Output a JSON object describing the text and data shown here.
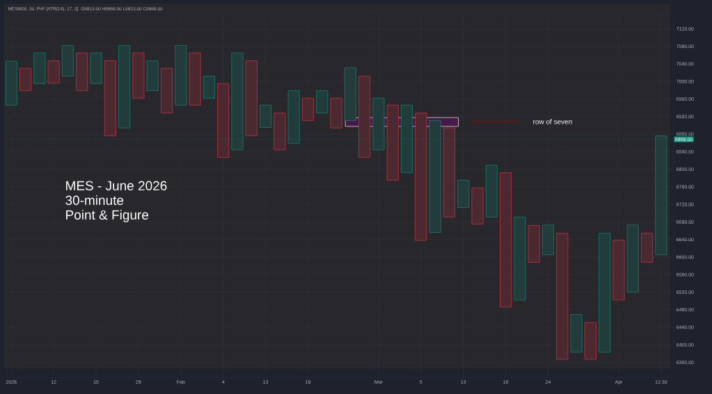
{
  "chart_data": {
    "type": "bar",
    "title": "MESM26, 30, PnF [ATR(14), 17, 3]",
    "subtitle": "O6813.00 H6868.00 L6813.00 C6868.00",
    "categories": [
      "2026",
      null,
      null,
      "12",
      null,
      null,
      "15",
      null,
      null,
      "29",
      null,
      null,
      "Feb",
      null,
      null,
      "4",
      null,
      null,
      "13",
      null,
      null,
      "19",
      null,
      null,
      null,
      null,
      "Mar",
      null,
      null,
      "5",
      null,
      null,
      "13",
      null,
      null,
      "18",
      null,
      null,
      "24",
      null,
      null,
      null,
      null,
      "Apr",
      null,
      null,
      "12:30"
    ],
    "series": [
      {
        "color": "#12806e",
        "values": [
          100,
          null,
          70,
          null,
          70,
          null,
          70,
          null,
          188,
          null,
          68,
          null,
          136,
          null,
          50,
          null,
          221,
          null,
          51,
          null,
          120,
          null,
          51,
          null,
          120,
          null,
          118,
          null,
          154,
          null,
          255,
          null,
          62,
          null,
          118,
          null,
          189,
          null,
          68,
          null,
          86,
          null,
          271,
          null,
          153,
          null,
          271
        ],
        "base": [
          6946,
          null,
          6995,
          null,
          7012,
          null,
          6995,
          null,
          6894,
          null,
          6979,
          null,
          6946,
          null,
          6962,
          null,
          6844,
          null,
          6895,
          null,
          6859,
          null,
          6928,
          null,
          6911,
          null,
          6844,
          null,
          6792,
          null,
          6656,
          null,
          6713,
          null,
          6691,
          null,
          6502,
          null,
          6605,
          null,
          6383,
          null,
          6383,
          null,
          6520,
          null,
          6605
        ]
      },
      {
        "color": "#c9303e",
        "values": [
          null,
          51,
          null,
          51,
          null,
          86,
          null,
          171,
          null,
          103,
          null,
          102,
          null,
          119,
          null,
          168,
          null,
          171,
          null,
          84,
          null,
          51,
          null,
          68,
          null,
          185,
          null,
          171,
          null,
          290,
          null,
          203,
          null,
          82,
          null,
          306,
          null,
          84,
          null,
          287,
          null,
          84,
          null,
          136,
          null,
          66,
          null
        ],
        "base": [
          null,
          6979,
          null,
          6996,
          null,
          6979,
          null,
          6876,
          null,
          6962,
          null,
          6928,
          null,
          6946,
          null,
          6827,
          null,
          6876,
          null,
          6844,
          null,
          6911,
          null,
          6894,
          null,
          6827,
          null,
          6775,
          null,
          6638,
          null,
          6691,
          null,
          6675,
          null,
          6486,
          null,
          6588,
          null,
          6367,
          null,
          6367,
          null,
          6502,
          null,
          6588,
          null
        ]
      }
    ],
    "ylim": [
      6325,
      7156
    ],
    "yticks": [
      {
        "value": 6360,
        "label": "6360.00"
      },
      {
        "value": 6400,
        "label": "6400.00"
      },
      {
        "value": 6440,
        "label": "6440.00"
      },
      {
        "value": 6480,
        "label": "6480.00"
      },
      {
        "value": 6520,
        "label": "6520.00"
      },
      {
        "value": 6560,
        "label": "6560.00"
      },
      {
        "value": 6600,
        "label": "6600.00"
      },
      {
        "value": 6640,
        "label": "6640.00"
      },
      {
        "value": 6680,
        "label": "6680.00"
      },
      {
        "value": 6720,
        "label": "6720.00"
      },
      {
        "value": 6760,
        "label": "6760.00"
      },
      {
        "value": 6800,
        "label": "6800.00"
      },
      {
        "value": 6840,
        "label": "6840.00"
      },
      {
        "value": 6880,
        "label": "6880.00"
      },
      {
        "value": 6920,
        "label": "6920.00"
      },
      {
        "value": 6960,
        "label": "6960.00"
      },
      {
        "value": 7000,
        "label": "7000.00"
      },
      {
        "value": 7040,
        "label": "7040.00"
      },
      {
        "value": 7080,
        "label": "7080.00"
      },
      {
        "value": 7120,
        "label": "7120.00"
      }
    ],
    "grid": true,
    "ref_lines": [
      {
        "axis": "y",
        "value": 6868,
        "label": "6868.00",
        "color": "#089981",
        "line_style": "dotted"
      }
    ],
    "annotations": [
      "row of seven",
      "MES - June 2026",
      "30-minute",
      "Point & Figure"
    ]
  }
}
